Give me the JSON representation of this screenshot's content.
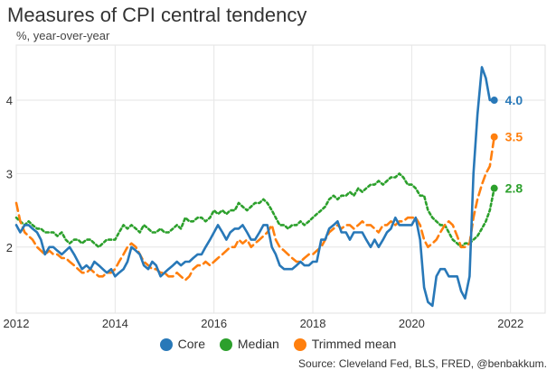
{
  "title": "Measures of CPI central tendency",
  "subtitle": "%, year-over-year",
  "source": "Source: Cleveland Fed, BLS, FRED, @benbakkum.",
  "legend": [
    {
      "label": "Core",
      "color": "#2878b8"
    },
    {
      "label": "Median",
      "color": "#2ca02c"
    },
    {
      "label": "Trimmed mean",
      "color": "#ff7f0e"
    }
  ],
  "chart_data": {
    "type": "line",
    "title": "Measures of CPI central tendency",
    "subtitle": "%, year-over-year",
    "xlim": [
      2012,
      2022.7
    ],
    "ylim": [
      1.1,
      4.75
    ],
    "x_ticks": [
      2012,
      2014,
      2016,
      2018,
      2020,
      2022
    ],
    "y_ticks": [
      2,
      3,
      4
    ],
    "grid": true,
    "legend_position": "bottom",
    "series": [
      {
        "name": "Core",
        "color": "#2878b8",
        "dash": "solid",
        "end_label": "4.0",
        "end_marker": true,
        "x": [
          2012.0,
          2012.08,
          2012.17,
          2012.25,
          2012.33,
          2012.42,
          2012.5,
          2012.58,
          2012.67,
          2012.75,
          2012.83,
          2012.92,
          2013.0,
          2013.08,
          2013.17,
          2013.25,
          2013.33,
          2013.42,
          2013.5,
          2013.58,
          2013.67,
          2013.75,
          2013.83,
          2013.92,
          2014.0,
          2014.08,
          2014.17,
          2014.25,
          2014.33,
          2014.42,
          2014.5,
          2014.58,
          2014.67,
          2014.75,
          2014.83,
          2014.92,
          2015.0,
          2015.08,
          2015.17,
          2015.25,
          2015.33,
          2015.42,
          2015.5,
          2015.58,
          2015.67,
          2015.75,
          2015.83,
          2015.92,
          2016.0,
          2016.08,
          2016.17,
          2016.25,
          2016.33,
          2016.42,
          2016.5,
          2016.58,
          2016.67,
          2016.75,
          2016.83,
          2016.92,
          2017.0,
          2017.08,
          2017.17,
          2017.25,
          2017.33,
          2017.42,
          2017.5,
          2017.58,
          2017.67,
          2017.75,
          2017.83,
          2017.92,
          2018.0,
          2018.08,
          2018.17,
          2018.25,
          2018.33,
          2018.42,
          2018.5,
          2018.58,
          2018.67,
          2018.75,
          2018.83,
          2018.92,
          2019.0,
          2019.08,
          2019.17,
          2019.25,
          2019.33,
          2019.42,
          2019.5,
          2019.58,
          2019.67,
          2019.75,
          2019.83,
          2019.92,
          2020.0,
          2020.08,
          2020.17,
          2020.25,
          2020.33,
          2020.42,
          2020.5,
          2020.58,
          2020.67,
          2020.75,
          2020.83,
          2020.92,
          2021.0,
          2021.08,
          2021.17,
          2021.25,
          2021.33,
          2021.42,
          2021.5,
          2021.58,
          2021.67
        ],
        "y": [
          2.3,
          2.2,
          2.3,
          2.3,
          2.25,
          2.2,
          2.1,
          1.9,
          2.0,
          2.0,
          1.95,
          1.9,
          1.95,
          2.0,
          1.9,
          1.8,
          1.7,
          1.75,
          1.7,
          1.8,
          1.75,
          1.7,
          1.65,
          1.7,
          1.6,
          1.65,
          1.7,
          1.8,
          2.0,
          1.95,
          1.9,
          1.75,
          1.7,
          1.8,
          1.75,
          1.6,
          1.65,
          1.7,
          1.75,
          1.8,
          1.75,
          1.8,
          1.8,
          1.85,
          1.9,
          1.9,
          2.0,
          2.1,
          2.2,
          2.3,
          2.2,
          2.1,
          2.2,
          2.25,
          2.25,
          2.3,
          2.2,
          2.1,
          2.1,
          2.2,
          2.3,
          2.3,
          2.0,
          1.9,
          1.75,
          1.7,
          1.7,
          1.7,
          1.75,
          1.8,
          1.75,
          1.75,
          1.8,
          1.8,
          2.1,
          2.1,
          2.25,
          2.3,
          2.35,
          2.2,
          2.2,
          2.1,
          2.2,
          2.2,
          2.2,
          2.1,
          2.0,
          2.1,
          2.0,
          2.1,
          2.2,
          2.25,
          2.4,
          2.3,
          2.3,
          2.3,
          2.3,
          2.4,
          2.1,
          1.45,
          1.25,
          1.2,
          1.6,
          1.7,
          1.7,
          1.6,
          1.6,
          1.6,
          1.4,
          1.3,
          1.6,
          3.0,
          3.8,
          4.45,
          4.3,
          4.0,
          4.0
        ]
      },
      {
        "name": "Median",
        "color": "#2ca02c",
        "dash": "dotted",
        "end_label": "2.8",
        "end_marker": true,
        "x": [
          2012.0,
          2012.08,
          2012.17,
          2012.25,
          2012.33,
          2012.42,
          2012.5,
          2012.58,
          2012.67,
          2012.75,
          2012.83,
          2012.92,
          2013.0,
          2013.08,
          2013.17,
          2013.25,
          2013.33,
          2013.42,
          2013.5,
          2013.58,
          2013.67,
          2013.75,
          2013.83,
          2013.92,
          2014.0,
          2014.08,
          2014.17,
          2014.25,
          2014.33,
          2014.42,
          2014.5,
          2014.58,
          2014.67,
          2014.75,
          2014.83,
          2014.92,
          2015.0,
          2015.08,
          2015.17,
          2015.25,
          2015.33,
          2015.42,
          2015.5,
          2015.58,
          2015.67,
          2015.75,
          2015.83,
          2015.92,
          2016.0,
          2016.08,
          2016.17,
          2016.25,
          2016.33,
          2016.42,
          2016.5,
          2016.58,
          2016.67,
          2016.75,
          2016.83,
          2016.92,
          2017.0,
          2017.08,
          2017.17,
          2017.25,
          2017.33,
          2017.42,
          2017.5,
          2017.58,
          2017.67,
          2017.75,
          2017.83,
          2017.92,
          2018.0,
          2018.08,
          2018.17,
          2018.25,
          2018.33,
          2018.42,
          2018.5,
          2018.58,
          2018.67,
          2018.75,
          2018.83,
          2018.92,
          2019.0,
          2019.08,
          2019.17,
          2019.25,
          2019.33,
          2019.42,
          2019.5,
          2019.58,
          2019.67,
          2019.75,
          2019.83,
          2019.92,
          2020.0,
          2020.08,
          2020.17,
          2020.25,
          2020.33,
          2020.42,
          2020.5,
          2020.58,
          2020.67,
          2020.75,
          2020.83,
          2020.92,
          2021.0,
          2021.08,
          2021.17,
          2021.25,
          2021.33,
          2021.42,
          2021.5,
          2021.58,
          2021.67
        ],
        "y": [
          2.4,
          2.35,
          2.3,
          2.35,
          2.3,
          2.25,
          2.25,
          2.2,
          2.2,
          2.2,
          2.15,
          2.2,
          2.1,
          2.05,
          2.1,
          2.1,
          2.05,
          2.1,
          2.1,
          2.05,
          2.0,
          2.05,
          2.1,
          2.1,
          2.1,
          2.2,
          2.3,
          2.25,
          2.3,
          2.25,
          2.2,
          2.3,
          2.25,
          2.2,
          2.2,
          2.25,
          2.2,
          2.2,
          2.25,
          2.3,
          2.25,
          2.4,
          2.35,
          2.35,
          2.4,
          2.4,
          2.35,
          2.4,
          2.5,
          2.45,
          2.5,
          2.45,
          2.5,
          2.5,
          2.6,
          2.55,
          2.5,
          2.55,
          2.6,
          2.6,
          2.65,
          2.6,
          2.5,
          2.4,
          2.3,
          2.3,
          2.25,
          2.3,
          2.3,
          2.35,
          2.3,
          2.35,
          2.4,
          2.45,
          2.5,
          2.55,
          2.65,
          2.7,
          2.65,
          2.7,
          2.7,
          2.75,
          2.7,
          2.8,
          2.75,
          2.8,
          2.85,
          2.85,
          2.9,
          2.85,
          2.9,
          2.95,
          2.95,
          3.0,
          2.95,
          2.85,
          2.85,
          2.8,
          2.7,
          2.7,
          2.5,
          2.4,
          2.35,
          2.3,
          2.3,
          2.2,
          2.1,
          2.05,
          2.0,
          2.05,
          2.05,
          2.1,
          2.15,
          2.25,
          2.35,
          2.5,
          2.8
        ]
      },
      {
        "name": "Trimmed mean",
        "color": "#ff7f0e",
        "dash": "dashed",
        "end_label": "3.5",
        "end_marker": true,
        "x": [
          2012.0,
          2012.08,
          2012.17,
          2012.25,
          2012.33,
          2012.42,
          2012.5,
          2012.58,
          2012.67,
          2012.75,
          2012.83,
          2012.92,
          2013.0,
          2013.08,
          2013.17,
          2013.25,
          2013.33,
          2013.42,
          2013.5,
          2013.58,
          2013.67,
          2013.75,
          2013.83,
          2013.92,
          2014.0,
          2014.08,
          2014.17,
          2014.25,
          2014.33,
          2014.42,
          2014.5,
          2014.58,
          2014.67,
          2014.75,
          2014.83,
          2014.92,
          2015.0,
          2015.08,
          2015.17,
          2015.25,
          2015.33,
          2015.42,
          2015.5,
          2015.58,
          2015.67,
          2015.75,
          2015.83,
          2015.92,
          2016.0,
          2016.08,
          2016.17,
          2016.25,
          2016.33,
          2016.42,
          2016.5,
          2016.58,
          2016.67,
          2016.75,
          2016.83,
          2016.92,
          2017.0,
          2017.08,
          2017.17,
          2017.25,
          2017.33,
          2017.42,
          2017.5,
          2017.58,
          2017.67,
          2017.75,
          2017.83,
          2017.92,
          2018.0,
          2018.08,
          2018.17,
          2018.25,
          2018.33,
          2018.42,
          2018.5,
          2018.58,
          2018.67,
          2018.75,
          2018.83,
          2018.92,
          2019.0,
          2019.08,
          2019.17,
          2019.25,
          2019.33,
          2019.42,
          2019.5,
          2019.58,
          2019.67,
          2019.75,
          2019.83,
          2019.92,
          2020.0,
          2020.08,
          2020.17,
          2020.25,
          2020.33,
          2020.42,
          2020.5,
          2020.58,
          2020.67,
          2020.75,
          2020.83,
          2020.92,
          2021.0,
          2021.08,
          2021.17,
          2021.25,
          2021.33,
          2021.42,
          2021.5,
          2021.58,
          2021.67
        ],
        "y": [
          2.6,
          2.35,
          2.2,
          2.15,
          2.1,
          2.0,
          1.95,
          1.9,
          1.95,
          1.9,
          1.9,
          1.85,
          1.85,
          1.8,
          1.75,
          1.7,
          1.65,
          1.65,
          1.7,
          1.65,
          1.6,
          1.6,
          1.65,
          1.65,
          1.7,
          1.8,
          1.9,
          2.0,
          2.05,
          2.0,
          1.9,
          1.8,
          1.75,
          1.7,
          1.7,
          1.65,
          1.65,
          1.6,
          1.6,
          1.65,
          1.6,
          1.55,
          1.6,
          1.7,
          1.75,
          1.75,
          1.8,
          1.75,
          1.8,
          1.85,
          1.9,
          1.95,
          2.0,
          2.0,
          2.1,
          2.05,
          2.1,
          2.0,
          2.05,
          2.1,
          2.15,
          2.2,
          2.3,
          2.1,
          2.0,
          1.95,
          1.9,
          1.85,
          1.8,
          1.8,
          1.85,
          1.9,
          1.9,
          1.95,
          2.0,
          2.1,
          2.2,
          2.25,
          2.3,
          2.25,
          2.3,
          2.3,
          2.25,
          2.3,
          2.35,
          2.3,
          2.3,
          2.25,
          2.2,
          2.3,
          2.3,
          2.35,
          2.3,
          2.35,
          2.35,
          2.4,
          2.4,
          2.4,
          2.3,
          2.1,
          2.0,
          2.05,
          2.1,
          2.2,
          2.3,
          2.35,
          2.3,
          2.15,
          2.0,
          2.0,
          2.05,
          2.4,
          2.65,
          2.85,
          3.0,
          3.1,
          3.5
        ]
      }
    ]
  }
}
